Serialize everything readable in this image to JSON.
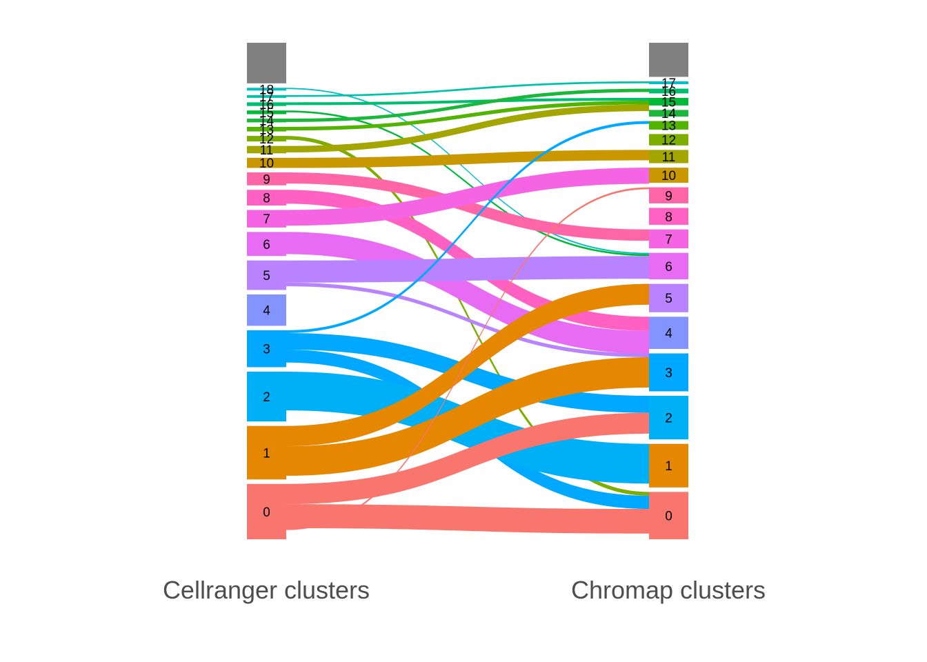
{
  "chart_data": {
    "type": "alluvial",
    "axes": [
      "Cellranger clusters",
      "Chromap clusters"
    ],
    "left_nodes": [
      {
        "label": "18",
        "size": 1.5,
        "color": "#00BFC4"
      },
      {
        "label": "17",
        "size": 1.5,
        "color": "#00C1AA"
      },
      {
        "label": "16",
        "size": 2,
        "color": "#00BE70"
      },
      {
        "label": "15",
        "size": 2,
        "color": "#00B937"
      },
      {
        "label": "14",
        "size": 2,
        "color": "#1BB73B"
      },
      {
        "label": "13",
        "size": 2.5,
        "color": "#53B400"
      },
      {
        "label": "12",
        "size": 3,
        "color": "#7CAE00"
      },
      {
        "label": "11",
        "size": 4,
        "color": "#A3A500"
      },
      {
        "label": "10",
        "size": 5.5,
        "color": "#C99800"
      },
      {
        "label": "9",
        "size": 7,
        "color": "#FF66A8"
      },
      {
        "label": "8",
        "size": 8.5,
        "color": "#FF61C3"
      },
      {
        "label": "7",
        "size": 9.5,
        "color": "#F564E3"
      },
      {
        "label": "6",
        "size": 13,
        "color": "#E76BF3"
      },
      {
        "label": "5",
        "size": 16,
        "color": "#B983FF"
      },
      {
        "label": "4",
        "size": 17,
        "color": "#8494FF"
      },
      {
        "label": "3",
        "size": 20,
        "color": "#00A9FF"
      },
      {
        "label": "2",
        "size": 27,
        "color": "#00B0F6"
      },
      {
        "label": "1",
        "size": 29,
        "color": "#E58700"
      },
      {
        "label": "0",
        "size": 30,
        "color": "#F8766D"
      },
      {
        "label": "",
        "size": 22,
        "color": "#808080"
      }
    ],
    "right_nodes": [
      {
        "label": "17",
        "size": 1.5,
        "color": "#00BFC4"
      },
      {
        "label": "16",
        "size": 2.5,
        "color": "#00BE70"
      },
      {
        "label": "15",
        "size": 4,
        "color": "#00B937"
      },
      {
        "label": "14",
        "size": 3.5,
        "color": "#1BB73B"
      },
      {
        "label": "13",
        "size": 4.5,
        "color": "#53B400"
      },
      {
        "label": "12",
        "size": 6,
        "color": "#7CAE00"
      },
      {
        "label": "11",
        "size": 7,
        "color": "#A3A500"
      },
      {
        "label": "10",
        "size": 8,
        "color": "#C99800"
      },
      {
        "label": "9",
        "size": 8.5,
        "color": "#FF66A8"
      },
      {
        "label": "8",
        "size": 9,
        "color": "#FF61C3"
      },
      {
        "label": "7",
        "size": 10,
        "color": "#F564E3"
      },
      {
        "label": "6",
        "size": 14,
        "color": "#E76BF3"
      },
      {
        "label": "5",
        "size": 15,
        "color": "#B983FF"
      },
      {
        "label": "4",
        "size": 17,
        "color": "#8494FF"
      },
      {
        "label": "3",
        "size": 20,
        "color": "#00A9FF"
      },
      {
        "label": "2",
        "size": 23,
        "color": "#00B0F6"
      },
      {
        "label": "1",
        "size": 23,
        "color": "#E58700"
      },
      {
        "label": "0",
        "size": 25,
        "color": "#F8766D"
      },
      {
        "label": "",
        "size": 18,
        "color": "#808080"
      }
    ],
    "flows": [
      {
        "from": "18",
        "to": "6",
        "value": 0.7,
        "color": "#00BFC4"
      },
      {
        "from": "17",
        "to": "17",
        "value": 1,
        "color": "#00C1AA"
      },
      {
        "from": "16",
        "to": "15",
        "value": 1.5,
        "color": "#00BE70"
      },
      {
        "from": "15",
        "to": "6",
        "value": 1,
        "color": "#00B937"
      },
      {
        "from": "14",
        "to": "16",
        "value": 1.8,
        "color": "#1BB73B"
      },
      {
        "from": "13",
        "to": "15",
        "value": 2,
        "color": "#53B400"
      },
      {
        "from": "12",
        "to": "0",
        "value": 2,
        "color": "#7CAE00"
      },
      {
        "from": "11",
        "to": "15",
        "value": 3.5,
        "color": "#A3A500"
      },
      {
        "from": "10",
        "to": "11",
        "value": 5.5,
        "color": "#C99800"
      },
      {
        "from": "9",
        "to": "7",
        "value": 6,
        "color": "#FF66A8"
      },
      {
        "from": "8",
        "to": "4",
        "value": 7.5,
        "color": "#FF61C3"
      },
      {
        "from": "7",
        "to": "10",
        "value": 8.5,
        "color": "#F564E3"
      },
      {
        "from": "6",
        "to": "4",
        "value": 12,
        "color": "#E76BF3"
      },
      {
        "from": "5",
        "to": "6",
        "value": 12,
        "color": "#B983FF"
      },
      {
        "from": "5",
        "to": "3",
        "value": 2,
        "color": "#B983FF"
      },
      {
        "from": "3",
        "to": "13",
        "value": 1.5,
        "color": "#00A9FF"
      },
      {
        "from": "3",
        "to": "2",
        "value": 9,
        "color": "#00A9FF"
      },
      {
        "from": "3",
        "to": "0",
        "value": 7,
        "color": "#00A9FF"
      },
      {
        "from": "2",
        "to": "1",
        "value": 21,
        "color": "#00B0F6"
      },
      {
        "from": "1",
        "to": "5",
        "value": 11,
        "color": "#E58700"
      },
      {
        "from": "1",
        "to": "3",
        "value": 16,
        "color": "#E58700"
      },
      {
        "from": "0",
        "to": "2",
        "value": 11,
        "color": "#F8766D"
      },
      {
        "from": "0",
        "to": "0",
        "value": 13,
        "color": "#F8766D"
      },
      {
        "from": "0",
        "to": "9",
        "value": 1,
        "color": "#F8766D"
      }
    ]
  }
}
